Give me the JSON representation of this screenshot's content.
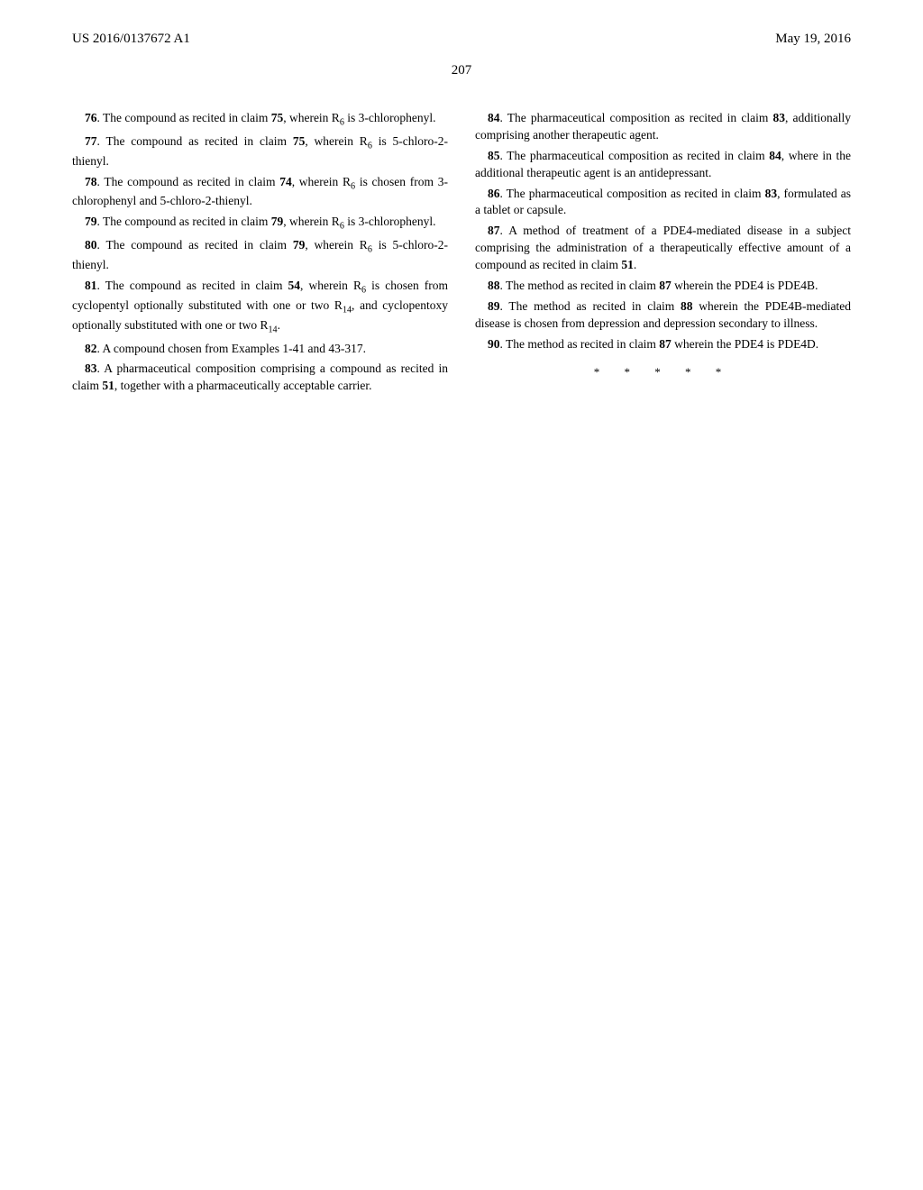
{
  "header": {
    "left": "US 2016/0137672 A1",
    "right": "May 19, 2016"
  },
  "pageNumber": "207",
  "leftColumn": {
    "claims": [
      {
        "num": "76",
        "text": ". The compound as recited in claim ",
        "bold2": "75",
        "text2": ", wherein R",
        "sub": "6",
        "text3": " is 3-chlorophenyl."
      },
      {
        "num": "77",
        "text": ". The compound as recited in claim ",
        "bold2": "75",
        "text2": ", wherein R",
        "sub": "6",
        "text3": " is 5-chloro-2-thienyl."
      },
      {
        "num": "78",
        "text": ". The compound as recited in claim ",
        "bold2": "74",
        "text2": ", wherein R",
        "sub": "6",
        "text3": " is chosen from 3-chlorophenyl and 5-chloro-2-thienyl."
      },
      {
        "num": "79",
        "text": ". The compound as recited in claim ",
        "bold2": "79",
        "text2": ", wherein R",
        "sub": "6",
        "text3": " is 3-chlorophenyl."
      },
      {
        "num": "80",
        "text": ". The compound as recited in claim ",
        "bold2": "79",
        "text2": ", wherein R",
        "sub": "6",
        "text3": " is 5-chloro-2-thienyl."
      },
      {
        "num": "81",
        "text": ". The compound as recited in claim ",
        "bold2": "54",
        "text2": ", wherein R",
        "sub": "6",
        "text3": " is chosen from cyclopentyl optionally substituted with one or two R",
        "sub2": "14",
        "text4": ", and cyclopentoxy optionally substituted with one or two R",
        "sub3": "14",
        "text5": "."
      },
      {
        "num": "82",
        "text": ". A compound chosen from Examples 1-41 and 43-317."
      },
      {
        "num": "83",
        "text": ". A pharmaceutical composition comprising a compound as recited in claim ",
        "bold2": "51",
        "text2": ", together with a pharmaceutically acceptable carrier."
      }
    ]
  },
  "rightColumn": {
    "claims": [
      {
        "num": "84",
        "text": ". The pharmaceutical composition as recited in claim ",
        "bold2": "83",
        "text2": ", additionally comprising another therapeutic agent."
      },
      {
        "num": "85",
        "text": ". The pharmaceutical composition as recited in claim ",
        "bold2": "84",
        "text2": ", where in the additional therapeutic agent is an antidepressant."
      },
      {
        "num": "86",
        "text": ". The pharmaceutical composition as recited in claim ",
        "bold2": "83",
        "text2": ", formulated as a tablet or capsule."
      },
      {
        "num": "87",
        "text": ". A method of treatment of a PDE4-mediated disease in a subject comprising the administration of a therapeutically effective amount of a compound as recited in claim ",
        "bold2": "51",
        "text2": "."
      },
      {
        "num": "88",
        "text": ". The method as recited in claim ",
        "bold2": "87",
        "text2": " wherein the PDE4 is PDE4B."
      },
      {
        "num": "89",
        "text": ". The method as recited in claim ",
        "bold2": "88",
        "text2": " wherein the PDE4B-mediated disease is chosen from depression and depression secondary to illness."
      },
      {
        "num": "90",
        "text": ". The method as recited in claim ",
        "bold2": "87",
        "text2": " wherein the PDE4 is PDE4D."
      }
    ],
    "asterisks": "* * * * *"
  }
}
